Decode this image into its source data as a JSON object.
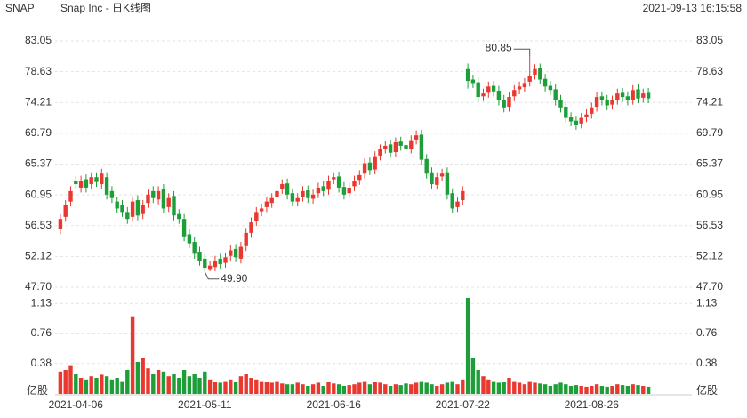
{
  "chart_data": {
    "type": "candlestick",
    "symbol": "SNAP",
    "title": "Snap Inc - 日K线图",
    "timestamp": "2021-09-13 16:15:58",
    "categories": [
      null,
      null,
      null,
      "2021-04-06",
      null,
      null,
      null,
      null,
      null,
      null,
      null,
      null,
      null,
      null,
      null,
      null,
      null,
      null,
      null,
      null,
      null,
      null,
      null,
      null,
      null,
      null,
      null,
      null,
      "2021-05-11",
      null,
      null,
      null,
      null,
      null,
      null,
      null,
      null,
      null,
      null,
      null,
      null,
      null,
      null,
      null,
      null,
      null,
      null,
      null,
      null,
      null,
      null,
      null,
      null,
      "2021-06-16",
      null,
      null,
      null,
      null,
      null,
      null,
      null,
      null,
      null,
      null,
      null,
      null,
      null,
      null,
      null,
      null,
      null,
      null,
      null,
      null,
      null,
      null,
      null,
      null,
      "2021-07-22",
      null,
      null,
      null,
      null,
      null,
      null,
      null,
      null,
      null,
      null,
      null,
      null,
      null,
      null,
      null,
      null,
      null,
      null,
      null,
      null,
      null,
      null,
      null,
      null,
      "2021-08-26",
      null,
      null,
      null,
      null,
      null,
      null,
      null,
      null,
      null,
      null,
      null
    ],
    "open": [
      56.0,
      57.8,
      60.0,
      63.0,
      62.0,
      63.2,
      62.5,
      63.5,
      62.5,
      63.5,
      61.5,
      60.0,
      59.5,
      58.5,
      57.8,
      60.2,
      58.2,
      59.8,
      61.5,
      60.3,
      61.8,
      59.2,
      60.8,
      58.2,
      57.5,
      55.3,
      54.2,
      52.8,
      51.8,
      50.2,
      50.6,
      51.8,
      51.2,
      52.2,
      53.2,
      51.8,
      53.6,
      55.5,
      57.2,
      58.6,
      59.2,
      59.8,
      60.6,
      61.8,
      62.6,
      61.2,
      60.0,
      60.7,
      61.6,
      60.4,
      61.2,
      62.2,
      61.7,
      63.2,
      63.6,
      62.1,
      61.2,
      62.2,
      63.1,
      64.0,
      65.6,
      64.6,
      66.6,
      67.6,
      68.2,
      67.1,
      68.6,
      68.1,
      67.6,
      68.9,
      69.6,
      66.1,
      64.2,
      62.4,
      63.6,
      64.2,
      61.2,
      59.2,
      60.2,
      79.0,
      77.5,
      77.1,
      75.1,
      75.6,
      76.6,
      75.9,
      74.6,
      73.6,
      75.1,
      76.1,
      76.4,
      77.2,
      78.2,
      79.1,
      77.6,
      76.6,
      76.1,
      74.6,
      73.6,
      72.1,
      71.6,
      71.2,
      72.1,
      72.6,
      73.6,
      75.1,
      74.6,
      73.9,
      74.6,
      75.6,
      75.1,
      74.6,
      76.1,
      74.9,
      75.6
    ],
    "high": [
      58.2,
      60.2,
      62.2,
      63.7,
      63.7,
      63.9,
      64.2,
      64.2,
      64.7,
      64.2,
      62.2,
      60.7,
      60.2,
      59.2,
      60.7,
      60.9,
      60.2,
      61.7,
      62.2,
      62.2,
      62.5,
      61.2,
      61.5,
      58.9,
      58.2,
      56.0,
      54.9,
      53.5,
      52.5,
      51.5,
      52.2,
      52.5,
      52.7,
      53.7,
      53.9,
      54.2,
      56.2,
      57.7,
      59.2,
      59.7,
      60.7,
      61.2,
      62.2,
      63.2,
      63.3,
      61.9,
      61.2,
      62.2,
      62.3,
      61.7,
      62.7,
      62.9,
      63.7,
      64.2,
      64.3,
      62.8,
      62.7,
      63.7,
      64.5,
      66.2,
      66.3,
      67.2,
      68.2,
      68.7,
      68.9,
      69.2,
      69.3,
      68.8,
      69.5,
      70.2,
      70.3,
      66.8,
      64.9,
      64.2,
      64.7,
      64.9,
      61.9,
      60.7,
      62.2,
      79.8,
      78.2,
      77.8,
      76.2,
      77.2,
      77.3,
      76.6,
      75.3,
      75.7,
      76.7,
      77.2,
      77.7,
      80.85,
      79.7,
      79.8,
      78.3,
      77.3,
      76.8,
      75.3,
      74.3,
      72.8,
      72.3,
      72.7,
      73.2,
      74.2,
      75.7,
      75.8,
      75.3,
      75.2,
      76.2,
      76.3,
      75.8,
      76.7,
      76.8,
      76.2,
      76.3
    ],
    "low": [
      55.3,
      57.1,
      59.3,
      61.8,
      61.3,
      61.3,
      61.8,
      62.1,
      61.8,
      60.3,
      59.8,
      58.3,
      57.8,
      56.8,
      57.1,
      57.3,
      57.5,
      59.1,
      59.8,
      59.6,
      58.3,
      58.5,
      57.3,
      56.8,
      54.3,
      53.3,
      51.8,
      50.8,
      49.9,
      50.0,
      50.0,
      50.3,
      50.5,
      51.5,
      51.3,
      51.1,
      52.9,
      54.8,
      56.5,
      57.9,
      58.5,
      59.1,
      59.9,
      61.1,
      60.3,
      59.3,
      59.3,
      60.0,
      59.8,
      59.7,
      60.5,
      60.8,
      61.0,
      62.5,
      61.3,
      60.3,
      60.5,
      61.5,
      62.4,
      63.3,
      63.8,
      63.9,
      65.9,
      66.9,
      66.3,
      66.4,
      67.3,
      66.8,
      66.9,
      68.2,
      65.3,
      63.3,
      61.8,
      61.7,
      62.9,
      60.3,
      58.3,
      58.5,
      59.5,
      76.2,
      76.3,
      74.3,
      74.4,
      74.9,
      75.1,
      73.8,
      72.8,
      72.9,
      74.4,
      75.4,
      75.7,
      76.5,
      77.5,
      76.8,
      75.8,
      75.3,
      73.8,
      72.8,
      71.3,
      70.8,
      70.3,
      70.5,
      71.4,
      71.9,
      72.9,
      73.8,
      73.1,
      73.2,
      73.9,
      74.3,
      73.8,
      73.9,
      74.1,
      74.2,
      74.1
    ],
    "close": [
      57.5,
      59.5,
      61.5,
      62.5,
      63.0,
      62.0,
      63.5,
      62.8,
      64.0,
      61.0,
      60.5,
      59.0,
      58.5,
      57.5,
      60.0,
      58.0,
      59.5,
      61.0,
      60.5,
      61.5,
      59.0,
      60.5,
      58.0,
      57.5,
      55.0,
      54.0,
      52.5,
      51.5,
      50.5,
      50.8,
      51.5,
      51.0,
      52.0,
      53.0,
      52.0,
      53.5,
      55.5,
      57.0,
      58.5,
      59.0,
      60.0,
      60.5,
      61.5,
      62.5,
      61.0,
      60.0,
      60.5,
      61.5,
      60.5,
      61.0,
      62.0,
      61.5,
      63.0,
      63.5,
      62.0,
      61.0,
      62.0,
      63.0,
      63.8,
      65.5,
      64.5,
      66.5,
      67.5,
      68.0,
      67.0,
      68.5,
      68.0,
      67.5,
      68.8,
      69.5,
      66.0,
      64.0,
      62.5,
      63.5,
      64.0,
      61.0,
      59.0,
      60.0,
      61.5,
      77.3,
      77.0,
      75.0,
      75.5,
      76.5,
      75.8,
      74.5,
      73.5,
      75.0,
      76.0,
      76.5,
      77.0,
      78.0,
      79.0,
      77.5,
      76.5,
      76.0,
      74.5,
      73.5,
      72.0,
      71.5,
      71.0,
      72.0,
      72.5,
      73.5,
      75.0,
      74.5,
      73.8,
      74.5,
      75.5,
      75.0,
      74.5,
      76.0,
      74.8,
      75.5,
      74.8
    ],
    "ylim": [
      47.7,
      83.05
    ],
    "yticks": [
      {
        "value": 47.7,
        "label": "47.70"
      },
      52.12,
      56.53,
      60.95,
      65.37,
      69.79,
      74.21,
      78.63,
      83.05
    ],
    "max_label": "80.85",
    "min_label": "49.90",
    "up_color": "#e8382f",
    "down_color": "#1e9e38",
    "grid": true,
    "volume": {
      "unit": "亿股",
      "ylim": [
        0,
        1.2
      ],
      "yticks": [
        0.38,
        0.76,
        1.13
      ],
      "values": [
        0.28,
        0.3,
        0.36,
        0.25,
        0.2,
        0.18,
        0.22,
        0.2,
        0.24,
        0.22,
        0.18,
        0.2,
        0.16,
        0.3,
        0.97,
        0.4,
        0.45,
        0.32,
        0.25,
        0.3,
        0.28,
        0.22,
        0.25,
        0.2,
        0.3,
        0.22,
        0.25,
        0.2,
        0.28,
        0.18,
        0.15,
        0.14,
        0.16,
        0.18,
        0.15,
        0.22,
        0.25,
        0.2,
        0.18,
        0.16,
        0.15,
        0.14,
        0.16,
        0.13,
        0.12,
        0.12,
        0.14,
        0.12,
        0.1,
        0.12,
        0.14,
        0.1,
        0.15,
        0.13,
        0.12,
        0.1,
        0.11,
        0.12,
        0.14,
        0.16,
        0.12,
        0.15,
        0.14,
        0.12,
        0.1,
        0.12,
        0.11,
        0.13,
        0.12,
        0.14,
        0.16,
        0.14,
        0.12,
        0.1,
        0.12,
        0.14,
        0.16,
        0.12,
        0.18,
        1.2,
        0.45,
        0.3,
        0.22,
        0.18,
        0.16,
        0.14,
        0.15,
        0.2,
        0.16,
        0.14,
        0.12,
        0.16,
        0.14,
        0.13,
        0.12,
        0.1,
        0.12,
        0.14,
        0.12,
        0.1,
        0.11,
        0.1,
        0.09,
        0.1,
        0.12,
        0.1,
        0.09,
        0.1,
        0.12,
        0.11,
        0.1,
        0.12,
        0.11,
        0.1,
        0.09
      ]
    }
  }
}
